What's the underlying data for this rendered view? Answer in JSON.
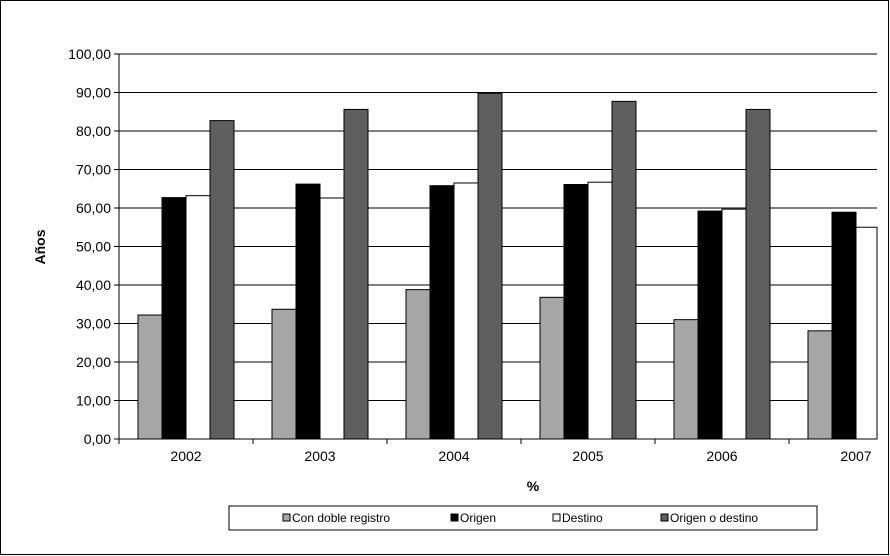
{
  "chart_data": {
    "type": "bar",
    "title": "",
    "xlabel": "%",
    "ylabel": "Años",
    "ylim": [
      0,
      100
    ],
    "yticks": [
      "0,00",
      "10,00",
      "20,00",
      "30,00",
      "40,00",
      "50,00",
      "60,00",
      "70,00",
      "80,00",
      "90,00",
      "100,00"
    ],
    "categories": [
      "2002",
      "2003",
      "2004",
      "2005",
      "2006",
      "2007"
    ],
    "grid": true,
    "legend_position": "bottom",
    "series": [
      {
        "name": "Con doble registro",
        "color": "#a6a6a6",
        "values": [
          32.2,
          33.7,
          38.8,
          36.8,
          31.0,
          28.1
        ]
      },
      {
        "name": "Origen",
        "color": "#000000",
        "values": [
          62.7,
          66.2,
          65.8,
          66.1,
          59.2,
          58.9
        ]
      },
      {
        "name": "Destino",
        "color": "#ffffff",
        "values": [
          63.2,
          62.6,
          66.5,
          66.7,
          59.7,
          55.0
        ]
      },
      {
        "name": "Origen o destino",
        "color": "#5f5f5f",
        "values": [
          82.7,
          85.6,
          89.8,
          87.7,
          85.6,
          null
        ]
      }
    ]
  }
}
